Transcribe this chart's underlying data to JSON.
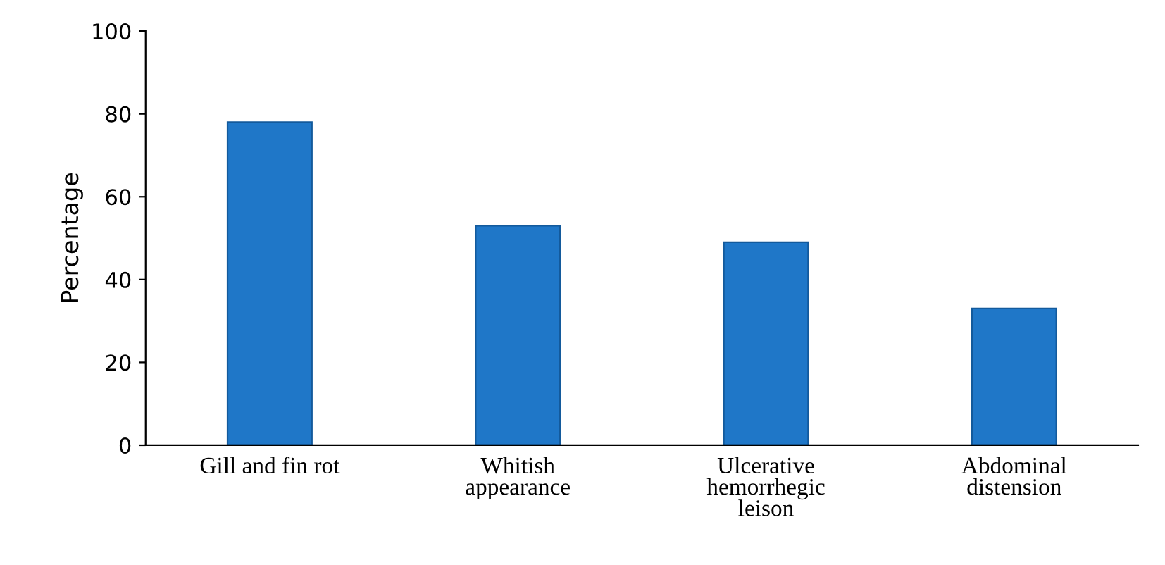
{
  "chart_data": {
    "type": "bar",
    "ylabel": "Percentage",
    "categories": [
      "Gill and fin rot",
      "Whitish\nappearance",
      "Ulcerative\nhemorrhegic\nleison",
      "Abdominal\ndistension"
    ],
    "values": [
      78,
      53,
      49,
      33
    ],
    "color": "#1f77c8",
    "ylim": [
      0,
      100
    ],
    "yticks": [
      0,
      20,
      40,
      60,
      80,
      100
    ],
    "grid": false,
    "legend": false
  }
}
